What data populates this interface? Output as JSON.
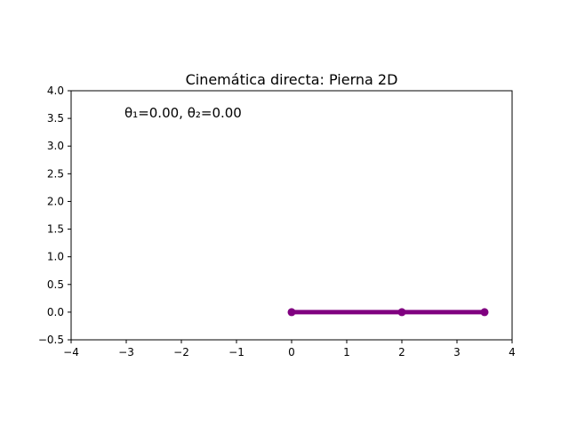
{
  "chart_data": {
    "type": "line",
    "title": "Cinemática directa: Pierna 2D",
    "xlabel": "",
    "ylabel": "",
    "xlim": [
      -4,
      4
    ],
    "ylim": [
      -0.5,
      4.0
    ],
    "xticks": [
      -4,
      -3,
      -2,
      -1,
      0,
      1,
      2,
      3,
      4
    ],
    "yticks": [
      -0.5,
      0.0,
      0.5,
      1.0,
      1.5,
      2.0,
      2.5,
      3.0,
      3.5,
      4.0
    ],
    "xtick_labels": [
      "−4",
      "−3",
      "−2",
      "−1",
      "0",
      "1",
      "2",
      "3",
      "4"
    ],
    "ytick_labels": [
      "−0.5",
      "0.0",
      "0.5",
      "1.0",
      "1.5",
      "2.0",
      "2.5",
      "3.0",
      "3.5",
      "4.0"
    ],
    "grid": false,
    "series": [
      {
        "color": "#800080",
        "marker": "circle",
        "x": [
          0,
          2,
          3.5
        ],
        "y": [
          0,
          0,
          0
        ]
      }
    ],
    "annotation": {
      "text": "θ₁=0.00, θ₂=0.00",
      "x": -3.0,
      "y": 3.5
    }
  }
}
